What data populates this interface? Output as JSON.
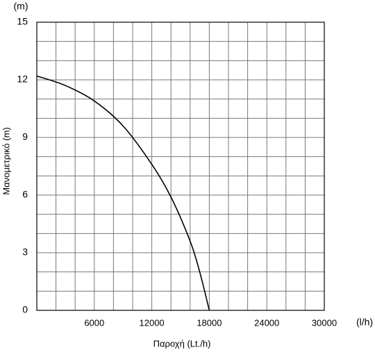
{
  "chart_data": {
    "type": "line",
    "y_unit": "(m)",
    "x_unit": "(l/h)",
    "y_label": "Μανομετρικό (m)",
    "x_label": "Παροχή (Lt./h)",
    "x": [
      0,
      3000,
      6000,
      9000,
      12000,
      14000,
      16000,
      17000,
      18000
    ],
    "series": [
      {
        "color": "#000000",
        "values": [
          12.2,
          11.7,
          10.9,
          9.6,
          7.6,
          5.9,
          3.6,
          2.0,
          0
        ]
      }
    ],
    "xlim": [
      0,
      30000
    ],
    "ylim": [
      0,
      15
    ],
    "xticks": [
      6000,
      12000,
      18000,
      24000,
      30000
    ],
    "yticks": [
      0,
      3,
      6,
      9,
      12,
      15
    ],
    "xgrid": [
      0,
      2000,
      4000,
      6000,
      8000,
      10000,
      12000,
      14000,
      16000,
      18000,
      20000,
      22000,
      24000,
      26000,
      28000,
      30000
    ],
    "ygrid": [
      0,
      1,
      2,
      3,
      4,
      5,
      6,
      7,
      8,
      9,
      10,
      11,
      12,
      13,
      14,
      15
    ],
    "grid": true
  }
}
